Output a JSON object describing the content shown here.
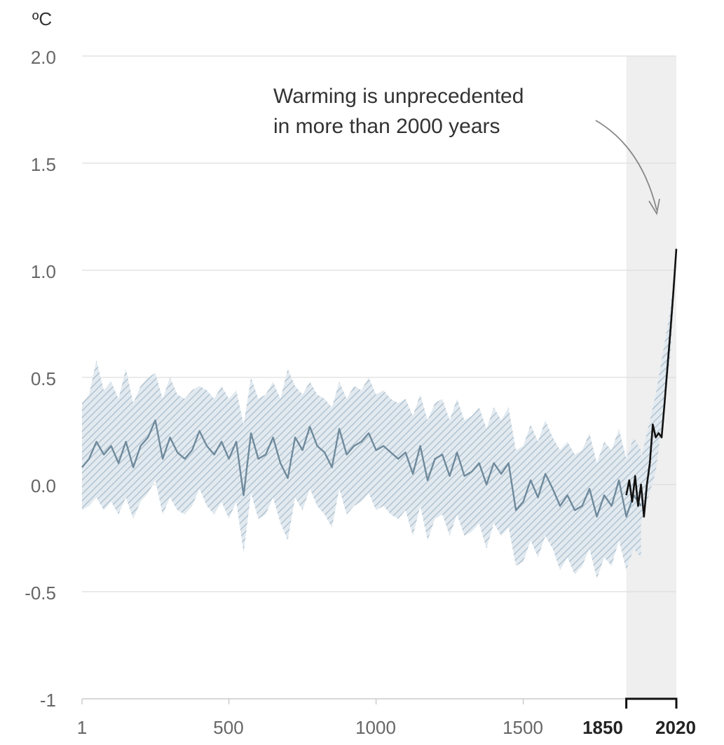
{
  "chart_data": {
    "type": "line",
    "unit_label": "ºC",
    "y_ticks": [
      "2.0",
      "1.5",
      "1.0",
      "0.5",
      "0.0",
      "-0.5",
      "-1"
    ],
    "y_tick_values": [
      2.0,
      1.5,
      1.0,
      0.5,
      0.0,
      -0.5,
      -1.0
    ],
    "x_ticks": [
      {
        "value": 1,
        "label": "1",
        "bold": false
      },
      {
        "value": 500,
        "label": "500",
        "bold": false
      },
      {
        "value": 1000,
        "label": "1000",
        "bold": false
      },
      {
        "value": 1500,
        "label": "1500",
        "bold": false
      },
      {
        "value": 1850,
        "label": "1850",
        "bold": true
      },
      {
        "value": 2020,
        "label": "2020",
        "bold": true
      }
    ],
    "xlim": [
      1,
      2020
    ],
    "ylim": [
      -1,
      2.0
    ],
    "grid": true,
    "shaded_period": [
      1850,
      2020
    ],
    "annotation": {
      "lines": [
        "Warming is unprecedented",
        "in more than 2000 years"
      ]
    },
    "colors": {
      "reconstruction": "#6f8a9c",
      "uncertainty": "#c4d3de",
      "observed": "#111111",
      "shading": "#efefef",
      "grid": "#dddddd"
    },
    "series": [
      {
        "key": "reconstruction",
        "x": [
          1,
          25,
          50,
          75,
          100,
          125,
          150,
          175,
          200,
          225,
          250,
          275,
          300,
          325,
          350,
          375,
          400,
          425,
          450,
          475,
          500,
          525,
          550,
          575,
          600,
          625,
          650,
          675,
          700,
          725,
          750,
          775,
          800,
          825,
          850,
          875,
          900,
          925,
          950,
          975,
          1000,
          1025,
          1050,
          1075,
          1100,
          1125,
          1150,
          1175,
          1200,
          1225,
          1250,
          1275,
          1300,
          1325,
          1350,
          1375,
          1400,
          1425,
          1450,
          1475,
          1500,
          1525,
          1550,
          1575,
          1600,
          1625,
          1650,
          1675,
          1700,
          1725,
          1750,
          1775,
          1800,
          1825,
          1850,
          1875,
          1900
        ],
        "y": [
          0.08,
          0.12,
          0.2,
          0.14,
          0.18,
          0.1,
          0.2,
          0.08,
          0.18,
          0.22,
          0.3,
          0.12,
          0.22,
          0.15,
          0.12,
          0.16,
          0.25,
          0.18,
          0.14,
          0.2,
          0.12,
          0.2,
          -0.05,
          0.24,
          0.12,
          0.14,
          0.22,
          0.1,
          0.03,
          0.22,
          0.16,
          0.27,
          0.18,
          0.15,
          0.08,
          0.26,
          0.14,
          0.18,
          0.2,
          0.24,
          0.16,
          0.18,
          0.15,
          0.12,
          0.15,
          0.05,
          0.18,
          0.02,
          0.12,
          0.14,
          0.04,
          0.15,
          0.04,
          0.06,
          0.1,
          0.0,
          0.1,
          0.05,
          0.1,
          -0.12,
          -0.08,
          0.02,
          -0.06,
          0.05,
          -0.02,
          -0.1,
          -0.05,
          -0.12,
          -0.1,
          -0.02,
          -0.15,
          -0.05,
          -0.1,
          0.02,
          -0.15,
          -0.05,
          -0.1
        ]
      },
      {
        "key": "uncertainty_upper",
        "x": [
          1,
          25,
          50,
          75,
          100,
          125,
          150,
          175,
          200,
          225,
          250,
          275,
          300,
          325,
          350,
          375,
          400,
          425,
          450,
          475,
          500,
          525,
          550,
          575,
          600,
          625,
          650,
          675,
          700,
          725,
          750,
          775,
          800,
          825,
          850,
          875,
          900,
          925,
          950,
          975,
          1000,
          1025,
          1050,
          1075,
          1100,
          1125,
          1150,
          1175,
          1200,
          1225,
          1250,
          1275,
          1300,
          1325,
          1350,
          1375,
          1400,
          1425,
          1450,
          1475,
          1500,
          1525,
          1550,
          1575,
          1600,
          1625,
          1650,
          1675,
          1700,
          1725,
          1750,
          1775,
          1800,
          1825,
          1850,
          1875,
          1900
        ],
        "y": [
          0.38,
          0.42,
          0.58,
          0.44,
          0.48,
          0.4,
          0.54,
          0.38,
          0.46,
          0.5,
          0.52,
          0.4,
          0.5,
          0.42,
          0.4,
          0.44,
          0.46,
          0.44,
          0.4,
          0.46,
          0.4,
          0.44,
          0.28,
          0.5,
          0.4,
          0.42,
          0.48,
          0.4,
          0.54,
          0.46,
          0.42,
          0.48,
          0.42,
          0.4,
          0.36,
          0.48,
          0.4,
          0.46,
          0.44,
          0.5,
          0.42,
          0.44,
          0.4,
          0.38,
          0.4,
          0.32,
          0.42,
          0.3,
          0.38,
          0.4,
          0.3,
          0.4,
          0.3,
          0.32,
          0.36,
          0.26,
          0.36,
          0.3,
          0.36,
          0.16,
          0.18,
          0.28,
          0.2,
          0.3,
          0.22,
          0.16,
          0.2,
          0.14,
          0.16,
          0.24,
          0.1,
          0.2,
          0.16,
          0.26,
          0.12,
          0.22,
          0.16
        ]
      },
      {
        "key": "uncertainty_lower",
        "x": [
          1,
          25,
          50,
          75,
          100,
          125,
          150,
          175,
          200,
          225,
          250,
          275,
          300,
          325,
          350,
          375,
          400,
          425,
          450,
          475,
          500,
          525,
          550,
          575,
          600,
          625,
          650,
          675,
          700,
          725,
          750,
          775,
          800,
          825,
          850,
          875,
          900,
          925,
          950,
          975,
          1000,
          1025,
          1050,
          1075,
          1100,
          1125,
          1150,
          1175,
          1200,
          1225,
          1250,
          1275,
          1300,
          1325,
          1350,
          1375,
          1400,
          1425,
          1450,
          1475,
          1500,
          1525,
          1550,
          1575,
          1600,
          1625,
          1650,
          1675,
          1700,
          1725,
          1750,
          1775,
          1800,
          1825,
          1850,
          1875,
          1900
        ],
        "y": [
          -0.12,
          -0.1,
          -0.06,
          -0.12,
          -0.08,
          -0.14,
          -0.06,
          -0.16,
          -0.08,
          -0.04,
          0.02,
          -0.14,
          -0.06,
          -0.12,
          -0.14,
          -0.1,
          -0.02,
          -0.1,
          -0.14,
          -0.08,
          -0.16,
          -0.08,
          -0.32,
          -0.04,
          -0.16,
          -0.14,
          -0.06,
          -0.18,
          -0.26,
          -0.06,
          -0.12,
          -0.02,
          -0.1,
          -0.14,
          -0.2,
          -0.02,
          -0.14,
          -0.1,
          -0.08,
          -0.04,
          -0.12,
          -0.1,
          -0.14,
          -0.16,
          -0.12,
          -0.24,
          -0.1,
          -0.26,
          -0.16,
          -0.14,
          -0.24,
          -0.14,
          -0.24,
          -0.22,
          -0.18,
          -0.3,
          -0.18,
          -0.24,
          -0.2,
          -0.38,
          -0.36,
          -0.26,
          -0.34,
          -0.24,
          -0.3,
          -0.4,
          -0.34,
          -0.42,
          -0.38,
          -0.3,
          -0.44,
          -0.34,
          -0.38,
          -0.26,
          -0.4,
          -0.3,
          -0.34
        ]
      },
      {
        "key": "observed",
        "x": [
          1850,
          1860,
          1870,
          1880,
          1890,
          1900,
          1910,
          1920,
          1930,
          1940,
          1950,
          1960,
          1970,
          1980,
          1990,
          2000,
          2010,
          2020
        ],
        "y": [
          -0.05,
          0.02,
          -0.08,
          0.04,
          -0.1,
          0.0,
          -0.15,
          0.0,
          0.1,
          0.28,
          0.22,
          0.24,
          0.22,
          0.38,
          0.55,
          0.72,
          0.9,
          1.1
        ]
      },
      {
        "key": "observed_uncertainty_upper",
        "x": [
          1850,
          1900,
          1950,
          2000,
          2020
        ],
        "y": [
          0.1,
          0.12,
          0.42,
          0.82,
          1.12
        ]
      },
      {
        "key": "observed_uncertainty_lower",
        "x": [
          1850,
          1900,
          1950,
          2000,
          2020
        ],
        "y": [
          -0.2,
          -0.18,
          0.06,
          0.6,
          1.06
        ]
      }
    ]
  }
}
